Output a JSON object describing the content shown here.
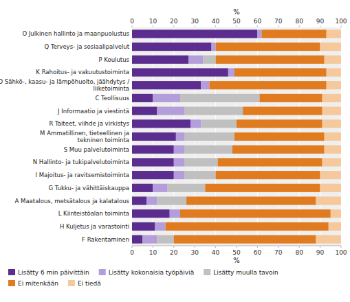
{
  "chart_data": {
    "type": "bar",
    "orientation": "horizontal",
    "stacked": true,
    "grid": true,
    "legend": "bottom",
    "x_label": "%",
    "xlim": [
      0,
      100
    ],
    "xticks": [
      0,
      10,
      20,
      30,
      40,
      50,
      60,
      70,
      80,
      90,
      100
    ],
    "categories": [
      "O Julkinen hallinto ja maanpuolustus",
      "Q Terveys- ja sosiaalipalvelut",
      "P Koulutus",
      "K Rahoitus- ja vakuutustoiminta",
      "D Sähkö-, kaasu- ja lämpöhuolto, jäähdytys /\n   liiketoiminta",
      "C Teollisuus",
      "J Informaatio ja viestintä",
      "R Taiteet, viihde ja virkistys",
      "M Ammatillinen, tieteellinen ja\n   tekninen toiminta",
      "S Muu palvelutoiminta",
      "N Hallinto- ja tukipalvelutoiminta",
      "I Majoitus- ja ravitsemistoiminta",
      "G Tukku- ja vähittäiskauppa",
      "A Maatalous, metsätalous ja kalatalous",
      "L Kiinteistöalan toiminta",
      "H Kuljetus ja varastointi",
      "F Rakentaminen"
    ],
    "series": [
      {
        "name": "Lisätty 6 min päivittäin",
        "color": "#5b2d8e",
        "values": [
          60,
          38,
          27,
          46,
          33,
          10,
          12,
          28,
          21,
          20,
          20,
          20,
          10,
          7,
          18,
          11,
          5
        ]
      },
      {
        "name": "Lisätty kokonaisia työpäiviä",
        "color": "#b39ddb",
        "values": [
          2,
          2,
          7,
          3,
          4,
          13,
          13,
          5,
          4,
          5,
          5,
          5,
          7,
          5,
          5,
          5,
          7
        ]
      },
      {
        "name": "Lisätty muulla tavoin",
        "color": "#c0c0c0",
        "values": [
          0,
          0,
          6,
          0,
          0,
          38,
          28,
          17,
          24,
          23,
          16,
          15,
          18,
          14,
          0,
          0,
          8
        ]
      },
      {
        "name": "Ei mitenkään",
        "color": "#e07b20",
        "values": [
          31,
          50,
          52,
          44,
          56,
          30,
          38,
          41,
          43,
          44,
          50,
          50,
          55,
          62,
          72,
          78,
          68
        ]
      },
      {
        "name": "Ei tiedä",
        "color": "#f5c99b",
        "values": [
          7,
          10,
          8,
          7,
          7,
          9,
          9,
          9,
          8,
          8,
          9,
          10,
          10,
          12,
          5,
          6,
          12
        ]
      }
    ]
  }
}
